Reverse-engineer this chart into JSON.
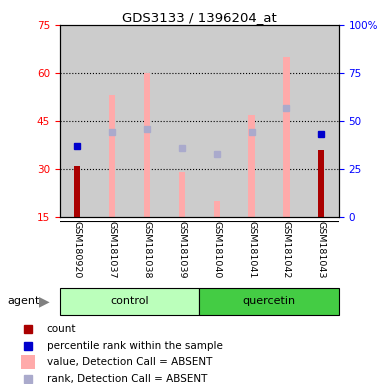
{
  "title": "GDS3133 / 1396204_at",
  "samples": [
    "GSM180920",
    "GSM181037",
    "GSM181038",
    "GSM181039",
    "GSM181040",
    "GSM181041",
    "GSM181042",
    "GSM181043"
  ],
  "ylim_left": [
    15,
    75
  ],
  "ylim_right": [
    0,
    100
  ],
  "yticks_left": [
    15,
    30,
    45,
    60,
    75
  ],
  "yticks_right": [
    0,
    25,
    50,
    75,
    100
  ],
  "count_values": [
    31,
    null,
    null,
    null,
    null,
    null,
    null,
    36
  ],
  "percentile_values": [
    37,
    null,
    null,
    null,
    null,
    null,
    null,
    43
  ],
  "absent_bar_values": [
    null,
    53,
    60,
    29,
    20,
    47,
    65,
    null
  ],
  "absent_rank_values": [
    null,
    44,
    46,
    36,
    33,
    44,
    57,
    null
  ],
  "bar_color_count": "#aa0000",
  "bar_color_absent": "#ffaaaa",
  "dot_color_percentile": "#0000cc",
  "dot_color_absent_rank": "#aaaacc",
  "background_sample": "#cccccc",
  "control_color": "#bbffbb",
  "quercetin_color": "#44cc44",
  "legend_items": [
    {
      "color": "#aa0000",
      "shape": "square",
      "label": "count"
    },
    {
      "color": "#0000cc",
      "shape": "square",
      "label": "percentile rank within the sample"
    },
    {
      "color": "#ffaaaa",
      "shape": "rect",
      "label": "value, Detection Call = ABSENT"
    },
    {
      "color": "#aaaacc",
      "shape": "square",
      "label": "rank, Detection Call = ABSENT"
    }
  ]
}
